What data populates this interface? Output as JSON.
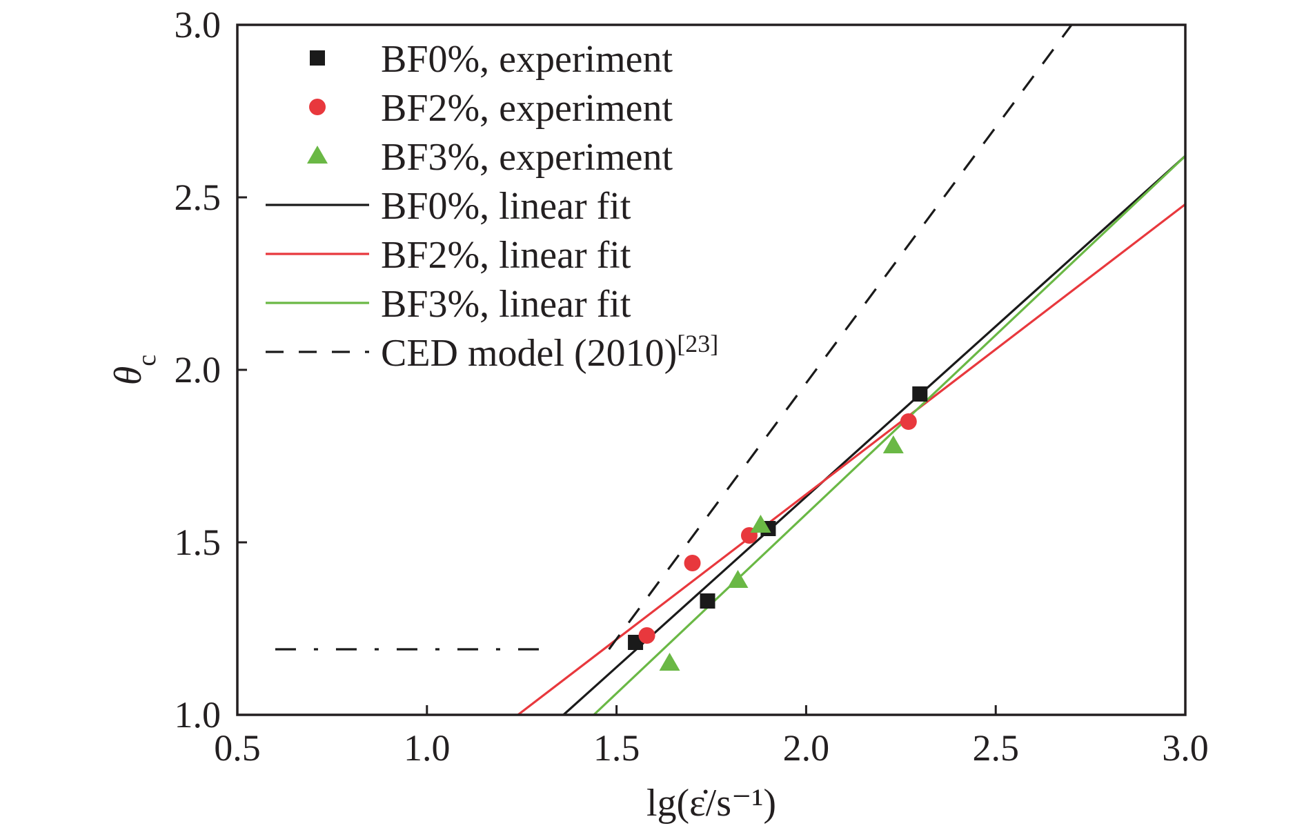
{
  "chart_data": {
    "type": "scatter",
    "xlabel": "lg(ε̇/s⁻¹)",
    "ylabel": "θc",
    "xlim": [
      0.5,
      3.0
    ],
    "ylim": [
      1.0,
      3.0
    ],
    "xticks": [
      "0.5",
      "1.0",
      "1.5",
      "2.0",
      "2.5",
      "3.0"
    ],
    "yticks": [
      "1.0",
      "1.5",
      "2.0",
      "2.5",
      "3.0"
    ],
    "grid": false,
    "legend_position": "top-left",
    "series": [
      {
        "name": "BF0%, experiment",
        "kind": "scatter",
        "marker": "square",
        "color": "#1a1a1a",
        "points": [
          [
            1.55,
            1.21
          ],
          [
            1.74,
            1.33
          ],
          [
            1.9,
            1.54
          ],
          [
            2.3,
            1.93
          ]
        ]
      },
      {
        "name": "BF2%, experiment",
        "kind": "scatter",
        "marker": "circle",
        "color": "#e8383d",
        "points": [
          [
            1.58,
            1.23
          ],
          [
            1.7,
            1.44
          ],
          [
            1.85,
            1.52
          ],
          [
            2.27,
            1.85
          ]
        ]
      },
      {
        "name": "BF3%, experiment",
        "kind": "scatter",
        "marker": "triangle",
        "color": "#6ab845",
        "points": [
          [
            1.64,
            1.15
          ],
          [
            1.82,
            1.39
          ],
          [
            1.88,
            1.55
          ],
          [
            2.23,
            1.78
          ]
        ]
      },
      {
        "name": "BF0%, linear fit",
        "kind": "line",
        "style": "solid",
        "color": "#1a1a1a",
        "points": [
          [
            1.36,
            1.0
          ],
          [
            3.0,
            2.62
          ]
        ]
      },
      {
        "name": "BF2%, linear fit",
        "kind": "line",
        "style": "solid",
        "color": "#e8383d",
        "points": [
          [
            1.24,
            1.0
          ],
          [
            3.0,
            2.48
          ]
        ]
      },
      {
        "name": "BF3%, linear fit",
        "kind": "line",
        "style": "solid",
        "color": "#6ab845",
        "points": [
          [
            1.44,
            1.0
          ],
          [
            3.0,
            2.62
          ]
        ]
      },
      {
        "name": "CED model (2010)",
        "name_superscript": "[23]",
        "kind": "line",
        "style": "dashed",
        "color": "#1a1a1a",
        "points": [
          [
            1.48,
            1.19
          ],
          [
            2.7,
            3.0
          ]
        ]
      },
      {
        "kind": "line",
        "style": "dashdot",
        "color": "#1a1a1a",
        "points": [
          [
            0.6,
            1.19
          ],
          [
            1.3,
            1.19
          ]
        ]
      }
    ]
  }
}
